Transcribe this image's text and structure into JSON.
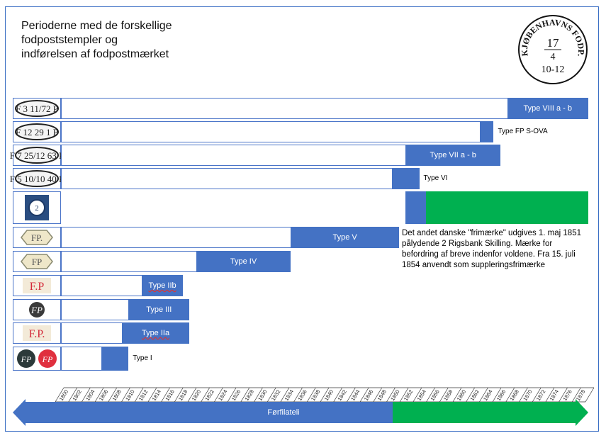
{
  "title": "Perioderne med de forskellige\nfodpoststempler og\nindførelsen af fodpostmærket",
  "stamp": {
    "text": "KJØBENHAVNS FODP.",
    "line1": "17",
    "line2": "4",
    "line3": "10-12"
  },
  "rows": [
    {
      "label": "Type VIII a - b",
      "start": 1866,
      "end": 1878,
      "icon_text": "F 3 11/72 P",
      "icon": "oval-stamp-icon"
    },
    {
      "label": "Type FP S-OVA",
      "start": 1862,
      "end": 1864,
      "icon_text": "F 12 29 1 P",
      "icon": "oval-stamp-icon"
    },
    {
      "label": "Type VII a - b",
      "start": 1851,
      "end": 1865,
      "icon_text": "F 7 25/12 63 P",
      "icon": "oval-stamp-icon"
    },
    {
      "label": "Type VI",
      "start": 1849,
      "end": 1853,
      "icon_text": "F 5 10/10 40 P",
      "icon": "oval-stamp-icon"
    },
    {
      "label": "",
      "start": 1851,
      "end": 1854,
      "green_end": 1878,
      "icon": "postage-stamp-icon"
    },
    {
      "label": "Type V",
      "start": 1834,
      "end": 1850,
      "icon_text": "FP.",
      "icon": "octagon-stamp-icon"
    },
    {
      "label": "Type IV",
      "start": 1820,
      "end": 1834,
      "icon_text": "FP",
      "icon": "octagon-stamp-icon"
    },
    {
      "label": "Type IIb",
      "start": 1812,
      "end": 1818,
      "icon_text": "F.P",
      "icon": "red-fp-icon"
    },
    {
      "label": "Type III",
      "start": 1810,
      "end": 1819,
      "icon_text": "FP",
      "icon": "script-fp-icon"
    },
    {
      "label": "Type IIa",
      "start": 1809,
      "end": 1819,
      "icon_text": "F.P.",
      "icon": "red-fp-icon"
    },
    {
      "label": "Type I",
      "start": 1806,
      "end": 1810,
      "icon_text": "FP",
      "icon": "twin-script-icon"
    }
  ],
  "note": "Det andet danske \"frimærke\" udgives 1. maj 1851 pålydende 2 Rigsbank Skilling. Mærke for befordring af breve indenfor voldene. Fra 15. juli 1854 anvendt som suppleringsfrimærke",
  "timeline": {
    "years": [
      "1800",
      "1802",
      "1804",
      "1806",
      "1808",
      "1810",
      "1812",
      "1814",
      "1816",
      "1818",
      "1820",
      "1822",
      "1824",
      "1826",
      "1828",
      "1830",
      "1832",
      "1834",
      "1836",
      "1838",
      "1840",
      "1842",
      "1844",
      "1846",
      "1848",
      "1850",
      "1852",
      "1854",
      "1856",
      "1858",
      "1860",
      "1862",
      "1864",
      "1866",
      "1868",
      "1870",
      "1872",
      "1874",
      "1876",
      "1878"
    ],
    "arrow_label": "Førfilateli",
    "split_year": 1851,
    "colors": {
      "blue": "#4472c4",
      "green": "#00b050"
    }
  }
}
